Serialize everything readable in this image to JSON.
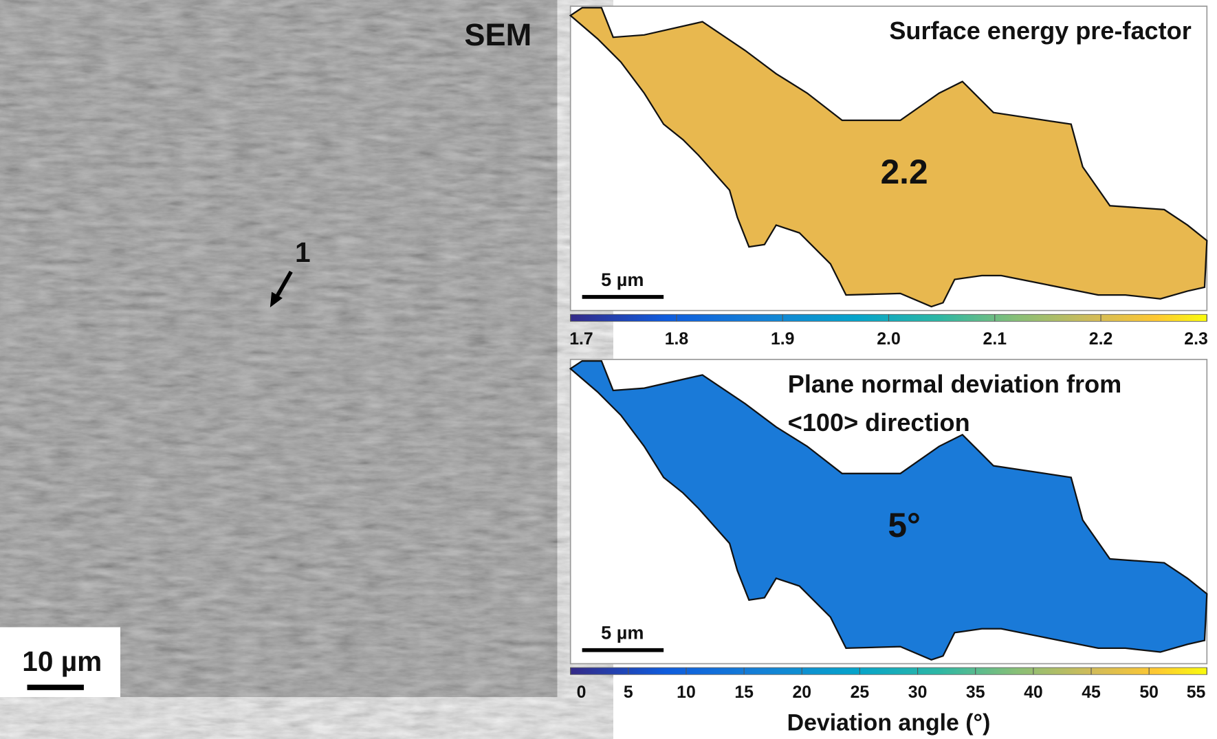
{
  "sem": {
    "label": "SEM",
    "scale_bar": "10 µm",
    "marker": "1"
  },
  "maps": [
    {
      "title_lines": [
        "Surface energy pre-factor"
      ],
      "value_label": "2.2",
      "scale_bar": "5 µm",
      "fill": "#e8b84f",
      "colorbar": {
        "lim": [
          1.7,
          2.3
        ],
        "ticks": [
          1.7,
          1.8,
          1.9,
          {
            "value": 2.0,
            "label": "2.0"
          },
          2.1,
          2.2,
          2.3
        ]
      }
    },
    {
      "title_lines": [
        "Plane normal deviation from",
        "<100> direction"
      ],
      "value_label": "5°",
      "scale_bar": "5 µm",
      "fill": "#1a7ad8",
      "colorbar": {
        "lim": [
          0,
          55
        ],
        "ticks": [
          0,
          5,
          10,
          15,
          20,
          25,
          30,
          35,
          40,
          45,
          50,
          55
        ],
        "title": "Deviation angle (°)"
      }
    }
  ]
}
